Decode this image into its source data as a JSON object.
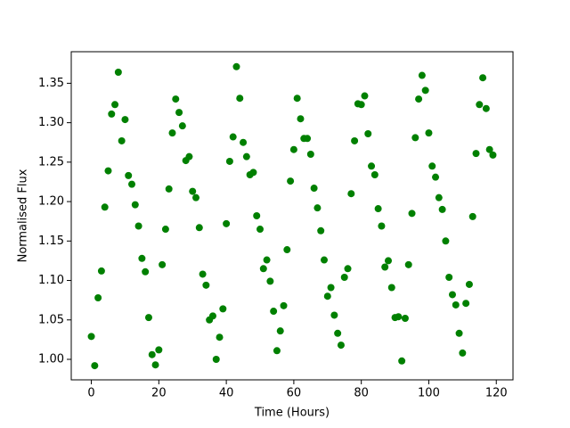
{
  "chart_data": {
    "type": "scatter",
    "xlabel": "Time (Hours)",
    "ylabel": "Normalised Flux",
    "color": "#008000",
    "grid": false,
    "x": [
      0,
      1,
      2,
      3,
      4,
      5,
      6,
      7,
      8,
      9,
      10,
      11,
      12,
      13,
      14,
      15,
      16,
      17,
      18,
      19,
      20,
      21,
      22,
      23,
      24,
      25,
      26,
      27,
      28,
      29,
      30,
      31,
      32,
      33,
      34,
      35,
      36,
      37,
      38,
      39,
      40,
      41,
      42,
      43,
      44,
      45,
      46,
      47,
      48,
      49,
      50,
      51,
      52,
      53,
      54,
      55,
      56,
      57,
      58,
      59,
      60,
      61,
      62,
      63,
      64,
      65,
      66,
      67,
      68,
      69,
      70,
      71,
      72,
      73,
      74,
      75,
      76,
      77,
      78,
      79,
      80,
      81,
      82,
      83,
      84,
      85,
      86,
      87,
      88,
      89,
      90,
      91,
      92,
      93,
      94,
      95,
      96,
      97,
      98,
      99,
      100,
      101,
      102,
      103,
      104,
      105,
      106,
      107,
      108,
      109,
      110,
      111,
      112,
      113,
      114,
      115,
      116,
      117,
      118,
      119
    ],
    "values": [
      1.029,
      0.992,
      1.078,
      1.112,
      1.193,
      1.239,
      1.311,
      1.323,
      1.364,
      1.277,
      1.304,
      1.233,
      1.222,
      1.196,
      1.169,
      1.128,
      1.111,
      1.053,
      1.006,
      0.993,
      1.012,
      1.12,
      1.165,
      1.216,
      1.287,
      1.33,
      1.313,
      1.296,
      1.252,
      1.257,
      1.213,
      1.205,
      1.167,
      1.108,
      1.094,
      1.05,
      1.055,
      1.0,
      1.028,
      1.064,
      1.172,
      1.251,
      1.282,
      1.371,
      1.331,
      1.275,
      1.257,
      1.234,
      1.237,
      1.182,
      1.165,
      1.115,
      1.126,
      1.099,
      1.061,
      1.011,
      1.036,
      1.068,
      1.139,
      1.226,
      1.266,
      1.331,
      1.305,
      1.28,
      1.28,
      1.26,
      1.217,
      1.192,
      1.163,
      1.126,
      1.08,
      1.091,
      1.056,
      1.033,
      1.018,
      1.104,
      1.115,
      1.21,
      1.277,
      1.324,
      1.323,
      1.334,
      1.286,
      1.245,
      1.234,
      1.191,
      1.169,
      1.117,
      1.125,
      1.091,
      1.053,
      1.054,
      0.998,
      1.052,
      1.12,
      1.185,
      1.281,
      1.33,
      1.36,
      1.341,
      1.287,
      1.245,
      1.231,
      1.205,
      1.19,
      1.15,
      1.104,
      1.082,
      1.069,
      1.033,
      1.008,
      1.071,
      1.095,
      1.181,
      1.261,
      1.323,
      1.357,
      1.318,
      1.266,
      1.259
    ],
    "xlim": [
      -5.95,
      124.95
    ],
    "xticks": [
      0,
      20,
      40,
      60,
      80,
      100,
      120
    ],
    "ylim": [
      0.974,
      1.39
    ],
    "yticks": [
      {
        "value": 1,
        "label": "1.00"
      },
      1.05,
      {
        "value": 1.1,
        "label": "1.10"
      },
      1.15,
      {
        "value": 1.2,
        "label": "1.20"
      },
      1.25,
      {
        "value": 1.3,
        "label": "1.30"
      },
      1.35
    ]
  }
}
